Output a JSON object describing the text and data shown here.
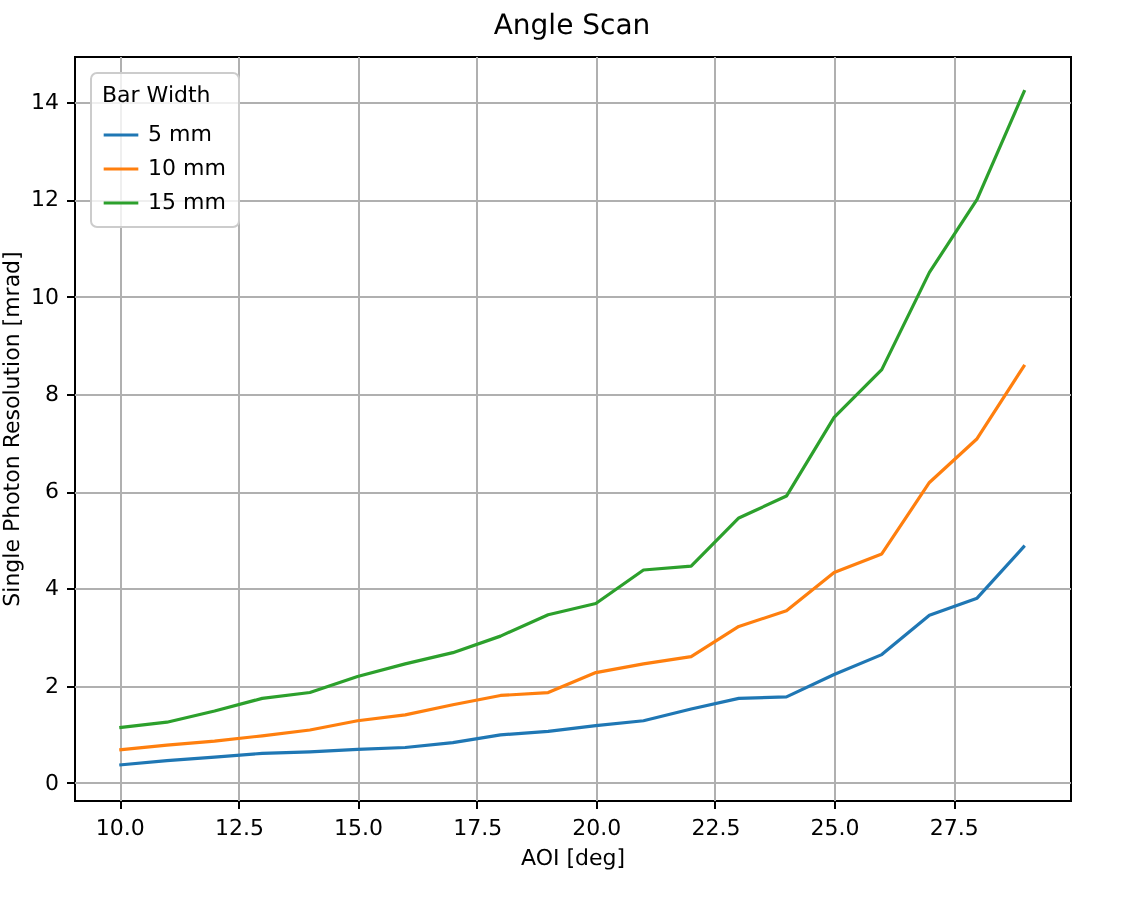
{
  "chart_data": {
    "type": "line",
    "title": "Angle Scan",
    "xlabel": "AOI [deg]",
    "ylabel": "Single Photon Resolution [mrad]",
    "legend_title": "Bar Width",
    "legend": "top left",
    "grid": true,
    "x": [
      10,
      11,
      12,
      13,
      14,
      15,
      16,
      17,
      18,
      19,
      20,
      21,
      22,
      23,
      24,
      25,
      26,
      27,
      28,
      29
    ],
    "xlim": [
      9.05,
      29.95
    ],
    "xticks": [
      {
        "value": 10,
        "label": "10.0"
      },
      12.5,
      {
        "value": 15,
        "label": "15.0"
      },
      17.5,
      {
        "value": 20,
        "label": "20.0"
      },
      22.5,
      {
        "value": 25,
        "label": "25.0"
      },
      27.5
    ],
    "ylim": [
      -0.35,
      14.95
    ],
    "yticks": [
      0,
      2,
      4,
      6,
      8,
      10,
      12,
      14
    ],
    "series": [
      {
        "name": "5 mm",
        "color": "#1f77b4",
        "values": [
          0.37,
          0.46,
          0.53,
          0.61,
          0.64,
          0.69,
          0.73,
          0.83,
          0.99,
          1.06,
          1.18,
          1.28,
          1.52,
          1.74,
          1.77,
          2.23,
          2.64,
          3.45,
          3.8,
          4.88
        ]
      },
      {
        "name": "10 mm",
        "color": "#ff7f0e",
        "values": [
          0.68,
          0.78,
          0.86,
          0.97,
          1.09,
          1.28,
          1.4,
          1.61,
          1.8,
          1.86,
          2.27,
          2.45,
          2.6,
          3.22,
          3.54,
          4.33,
          4.71,
          6.18,
          7.08,
          8.6
        ]
      },
      {
        "name": "15 mm",
        "color": "#2ca02c",
        "values": [
          1.14,
          1.25,
          1.48,
          1.74,
          1.86,
          2.19,
          2.45,
          2.68,
          3.02,
          3.46,
          3.69,
          4.38,
          4.46,
          5.45,
          5.9,
          7.52,
          8.5,
          10.5,
          12.0,
          14.25
        ]
      }
    ]
  }
}
